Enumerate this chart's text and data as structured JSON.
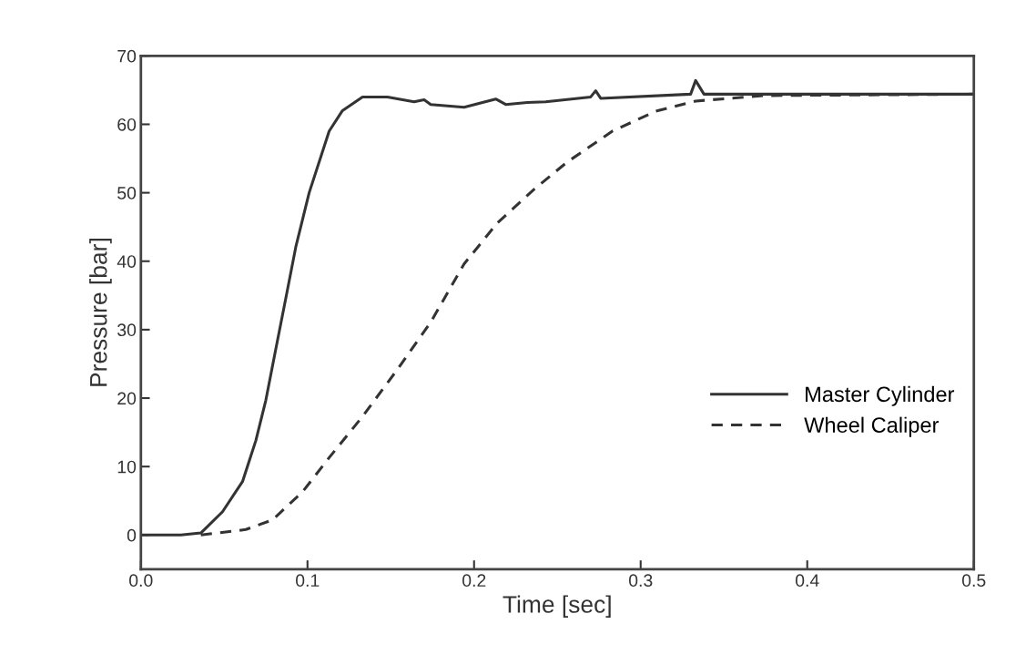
{
  "chart_data": {
    "type": "line",
    "xlabel": "Time [sec]",
    "ylabel": "Pressure [bar]",
    "xlim": [
      0,
      0.5
    ],
    "xticks": [
      {
        "value": 0,
        "label": "0.0"
      },
      0.1,
      0.2,
      0.3,
      0.4,
      0.5
    ],
    "ylim": [
      -5,
      70
    ],
    "yticks": [
      0,
      10,
      20,
      30,
      40,
      50,
      60,
      70
    ],
    "grid": false,
    "legend": "bottom right",
    "marker": "none",
    "series": [
      {
        "name": "Master Cylinder",
        "color": "#333333",
        "line_style": "solid",
        "x": [
          0,
          0.024,
          0.036,
          0.049,
          0.061,
          0.069,
          0.075,
          0.081,
          0.087,
          0.093,
          0.101,
          0.113,
          0.121,
          0.133,
          0.148,
          0.164,
          0.17,
          0.174,
          0.194,
          0.213,
          0.219,
          0.232,
          0.243,
          0.27,
          0.273,
          0.276,
          0.33,
          0.333,
          0.338,
          0.394,
          0.5
        ],
        "values": [
          0,
          0,
          0.3,
          3.4,
          7.8,
          13.8,
          19.7,
          27.2,
          34.6,
          42.1,
          50,
          59,
          62,
          64,
          64,
          63.3,
          63.6,
          62.9,
          62.5,
          63.7,
          62.9,
          63.2,
          63.3,
          64,
          64.9,
          63.8,
          64.4,
          66.4,
          64.4,
          64.4,
          64.4
        ]
      },
      {
        "name": "Wheel Caliper",
        "color": "#333333",
        "line_style": "dashed",
        "x": [
          0.036,
          0.063,
          0.079,
          0.097,
          0.113,
          0.133,
          0.154,
          0.174,
          0.194,
          0.214,
          0.236,
          0.256,
          0.283,
          0.309,
          0.333,
          0.374,
          0.5
        ],
        "values": [
          0,
          0.8,
          2.2,
          6.3,
          11.3,
          17.3,
          24.2,
          31.1,
          39.6,
          45.6,
          50.5,
          54.5,
          59,
          61.9,
          63.4,
          64.2,
          64.4
        ]
      }
    ]
  }
}
